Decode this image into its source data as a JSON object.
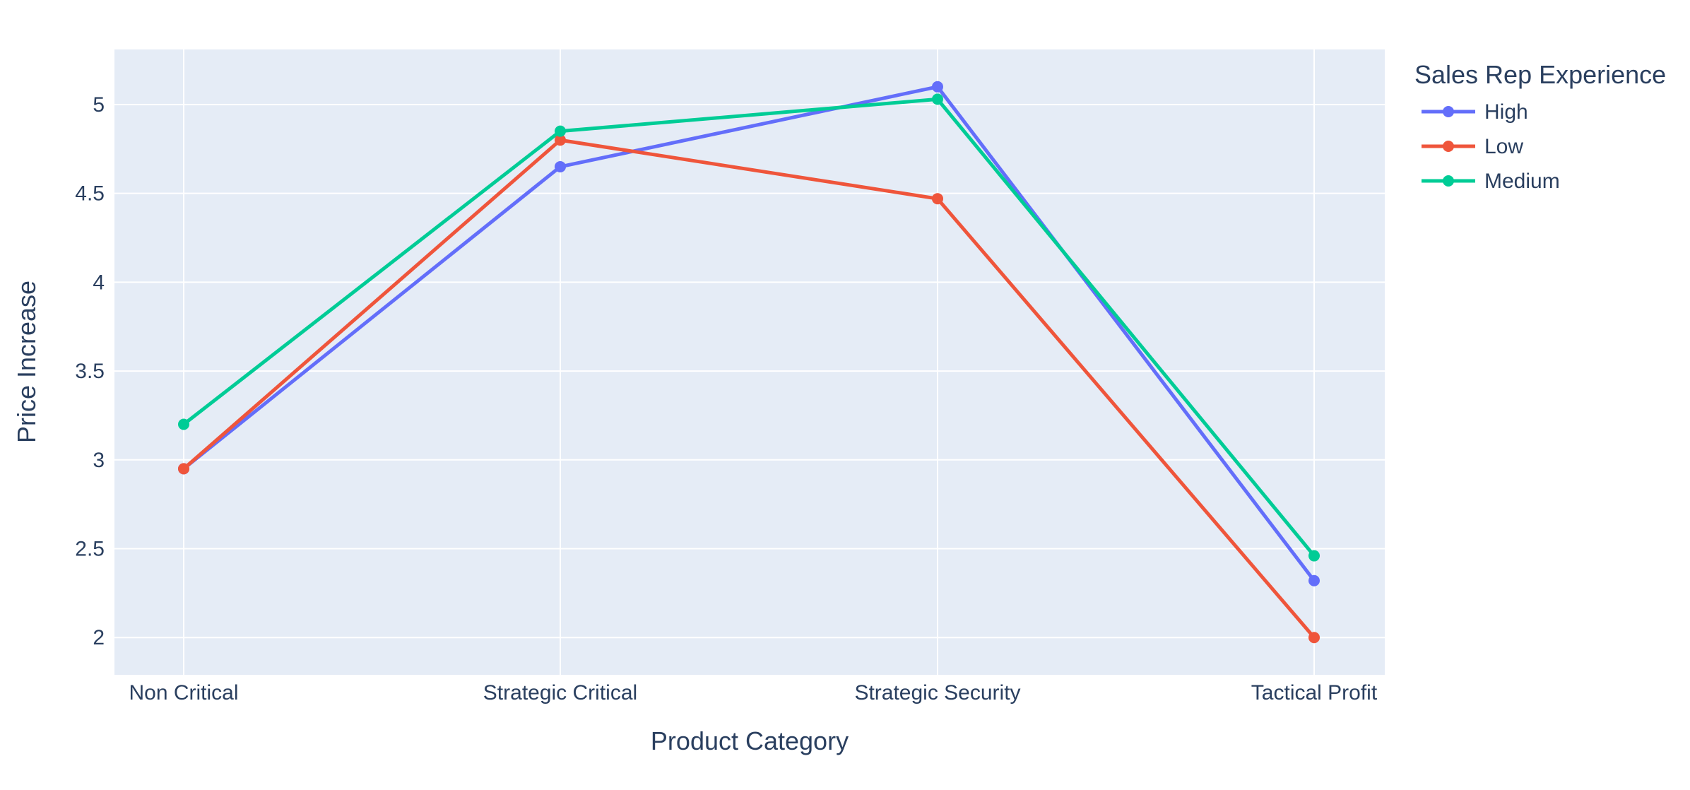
{
  "chart_data": {
    "type": "line",
    "title": "",
    "xlabel": "Product Category",
    "ylabel": "Price Increase",
    "categories": [
      "Non Critical",
      "Strategic Critical",
      "Strategic Security",
      "Tactical Profit"
    ],
    "ylim": [
      1.79,
      5.31
    ],
    "yticks": [
      2,
      2.5,
      3,
      3.5,
      4,
      4.5,
      5
    ],
    "ytick_labels": [
      "2",
      "2.5",
      "3",
      "3.5",
      "4",
      "4.5",
      "5"
    ],
    "grid": true,
    "legend": {
      "title": "Sales Rep Experience",
      "position": "right"
    },
    "series": [
      {
        "name": "High",
        "color": "#636efa",
        "values": [
          2.95,
          4.65,
          5.1,
          2.32
        ]
      },
      {
        "name": "Low",
        "color": "#ef553b",
        "values": [
          2.95,
          4.8,
          4.47,
          2.0
        ]
      },
      {
        "name": "Medium",
        "color": "#00cc96",
        "values": [
          3.2,
          4.85,
          5.03,
          2.46
        ]
      }
    ],
    "plot_background": "#e5ecf6",
    "gridline_color": "#ffffff",
    "text_color": "#2a3f5f"
  }
}
